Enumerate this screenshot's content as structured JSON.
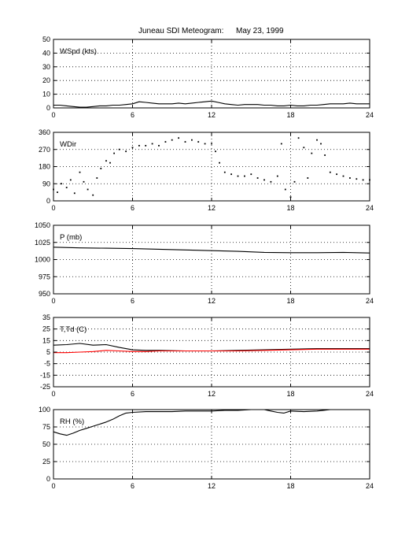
{
  "figure": {
    "title": "Juneau SDI Meteogram:",
    "date": "May 23, 1999"
  },
  "chart_data": [
    {
      "type": "line",
      "label": "WSpd (kts)",
      "xlim": [
        0,
        24
      ],
      "xticks": [
        0,
        6,
        12,
        18,
        24
      ],
      "ylim": [
        0,
        50
      ],
      "yticks": [
        0,
        10,
        20,
        30,
        40,
        50
      ],
      "grid": true,
      "series": [
        {
          "color": "#000000",
          "style": "line",
          "x": [
            0,
            0.5,
            1,
            1.5,
            2,
            2.5,
            3,
            3.5,
            4,
            4.5,
            5,
            5.5,
            6,
            6.5,
            7,
            7.5,
            8,
            8.5,
            9,
            9.5,
            10,
            10.5,
            11,
            11.5,
            12,
            12.5,
            13,
            13.5,
            14,
            14.5,
            15,
            15.5,
            16,
            16.5,
            17,
            17.5,
            18,
            18.5,
            19,
            19.5,
            20,
            20.5,
            21,
            21.5,
            22,
            22.5,
            23,
            23.5,
            24
          ],
          "y": [
            2,
            2,
            1.5,
            1,
            0.5,
            0.5,
            1,
            1.5,
            1.5,
            2,
            2,
            2.5,
            3,
            4.5,
            4,
            3.5,
            3,
            3,
            3,
            3.5,
            3,
            3.5,
            4,
            4.5,
            5,
            4,
            3,
            2.5,
            2,
            2.5,
            2.5,
            2.5,
            2,
            2,
            1.5,
            1.5,
            2,
            1.5,
            1.5,
            2,
            2,
            2.5,
            3,
            3,
            3,
            3.5,
            3,
            3,
            3
          ]
        }
      ]
    },
    {
      "type": "scatter",
      "label": "WDir",
      "xlim": [
        0,
        24
      ],
      "xticks": [
        0,
        6,
        12,
        18,
        24
      ],
      "ylim": [
        0,
        360
      ],
      "yticks": [
        0,
        90,
        180,
        270,
        360
      ],
      "grid": true,
      "series": [
        {
          "color": "#000000",
          "style": "dots",
          "x": [
            0,
            0.3,
            0.6,
            1,
            1.3,
            1.6,
            2,
            2.3,
            2.6,
            3,
            3.3,
            3.6,
            4,
            4.3,
            4.6,
            5,
            5.5,
            6,
            6.5,
            7,
            7.5,
            8,
            8.5,
            9,
            9.5,
            10,
            10.5,
            11,
            11.5,
            12,
            12.3,
            12.6,
            13,
            13.5,
            14,
            14.5,
            15,
            15.5,
            16,
            16.5,
            17,
            17.3,
            17.6,
            18,
            18.3,
            18.6,
            19,
            19.3,
            19.6,
            20,
            20.3,
            20.6,
            21,
            21.5,
            22,
            22.5,
            23,
            23.5,
            24
          ],
          "y": [
            60,
            45,
            90,
            70,
            110,
            40,
            150,
            100,
            60,
            30,
            120,
            170,
            210,
            200,
            250,
            270,
            260,
            280,
            290,
            290,
            300,
            290,
            310,
            320,
            330,
            310,
            320,
            310,
            300,
            300,
            260,
            200,
            150,
            140,
            130,
            130,
            140,
            120,
            110,
            100,
            130,
            300,
            60,
            20,
            100,
            330,
            280,
            120,
            250,
            320,
            300,
            240,
            150,
            140,
            130,
            120,
            115,
            110,
            110
          ]
        }
      ]
    },
    {
      "type": "line",
      "label": "P (mb)",
      "xlim": [
        0,
        24
      ],
      "xticks": [
        0,
        6,
        12,
        18,
        24
      ],
      "ylim": [
        950,
        1050
      ],
      "yticks": [
        950,
        975,
        1000,
        1025,
        1050
      ],
      "grid": true,
      "series": [
        {
          "color": "#000000",
          "style": "line",
          "x": [
            0,
            2,
            4,
            6,
            8,
            10,
            12,
            14,
            16,
            18,
            20,
            22,
            24
          ],
          "y": [
            1018,
            1017,
            1016.5,
            1016,
            1015,
            1014,
            1013,
            1012,
            1010.5,
            1010,
            1010,
            1010.5,
            1009.5
          ]
        }
      ]
    },
    {
      "type": "line",
      "label": "T,Td (C)",
      "xlim": [
        0,
        24
      ],
      "xticks": [
        0,
        6,
        12,
        18,
        24
      ],
      "ylim": [
        -25,
        35
      ],
      "yticks": [
        -25,
        -15,
        -5,
        5,
        15,
        25,
        35
      ],
      "grid": true,
      "series": [
        {
          "color": "#000000",
          "style": "line",
          "x": [
            0,
            1,
            2,
            3,
            4,
            5,
            6,
            7,
            8,
            10,
            12,
            14,
            16,
            18,
            20,
            22,
            24
          ],
          "y": [
            11,
            11.5,
            12.5,
            11,
            11.5,
            9,
            7,
            6.5,
            6.5,
            6,
            6,
            6.5,
            7,
            7.5,
            8,
            8,
            8
          ]
        },
        {
          "color": "#ff0000",
          "style": "line",
          "x": [
            0,
            1,
            2,
            3,
            4,
            5,
            6,
            7,
            8,
            10,
            12,
            14,
            16,
            18,
            20,
            22,
            24
          ],
          "y": [
            4.5,
            4.5,
            5,
            5.5,
            6.5,
            6,
            5.5,
            5.5,
            6,
            6,
            6,
            6,
            6.5,
            7,
            7.5,
            7.5,
            7.5
          ]
        }
      ]
    },
    {
      "type": "line",
      "label": "RH (%)",
      "xlim": [
        0,
        24
      ],
      "xticks": [
        0,
        6,
        12,
        18,
        24
      ],
      "ylim": [
        0,
        100
      ],
      "yticks": [
        0,
        25,
        50,
        75,
        100
      ],
      "grid": true,
      "series": [
        {
          "color": "#000000",
          "style": "line",
          "x": [
            0,
            0.5,
            1,
            1.5,
            2,
            2.5,
            3,
            3.5,
            4,
            4.5,
            5,
            5.5,
            6,
            7,
            8,
            9,
            10,
            11,
            12,
            13,
            14,
            15,
            16,
            16.5,
            17,
            17.5,
            18,
            19,
            20,
            20.5,
            21
          ],
          "y": [
            68,
            65,
            63,
            66,
            70,
            73,
            76,
            79,
            82,
            86,
            91,
            95,
            96,
            97,
            97,
            97,
            98,
            98,
            98,
            99,
            99,
            100,
            100,
            98,
            96,
            95,
            98,
            97,
            98,
            99,
            100
          ]
        }
      ]
    }
  ]
}
